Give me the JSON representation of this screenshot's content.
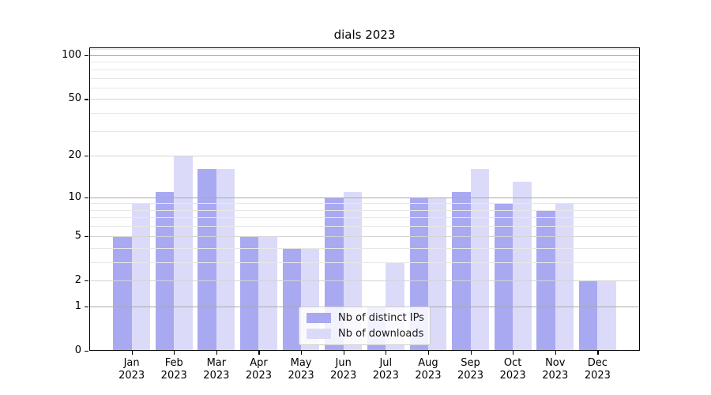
{
  "chart_data": {
    "type": "bar",
    "title": "dials 2023",
    "categories": [
      {
        "month": "Jan",
        "year": "2023"
      },
      {
        "month": "Feb",
        "year": "2023"
      },
      {
        "month": "Mar",
        "year": "2023"
      },
      {
        "month": "Apr",
        "year": "2023"
      },
      {
        "month": "May",
        "year": "2023"
      },
      {
        "month": "Jun",
        "year": "2023"
      },
      {
        "month": "Jul",
        "year": "2023"
      },
      {
        "month": "Aug",
        "year": "2023"
      },
      {
        "month": "Sep",
        "year": "2023"
      },
      {
        "month": "Oct",
        "year": "2023"
      },
      {
        "month": "Nov",
        "year": "2023"
      },
      {
        "month": "Dec",
        "year": "2023"
      }
    ],
    "series": [
      {
        "key": "ips",
        "name": "Nb of distinct IPs",
        "color": "#a9a9f2",
        "values": [
          5,
          11,
          16,
          5,
          4,
          10,
          1,
          10,
          11,
          9,
          8,
          2
        ]
      },
      {
        "key": "downloads",
        "name": "Nb of downloads",
        "color": "#dbdbf9",
        "values": [
          9,
          20,
          16,
          5,
          4,
          11,
          3,
          10,
          16,
          13,
          9,
          2
        ]
      }
    ],
    "y_axis": {
      "scale": "log10(1+x)",
      "major_ticks": [
        0,
        1,
        2,
        5,
        10,
        20,
        50,
        100
      ],
      "minor_gridlines": [
        3,
        4,
        6,
        7,
        8,
        9,
        30,
        40,
        60,
        70,
        80,
        90,
        110
      ],
      "ylim": [
        0,
        113
      ]
    },
    "grid": true,
    "legend_position": "lower center"
  },
  "colors": {
    "background": "#ffffff",
    "grid_major": "#a9a9a9",
    "grid_mid": "#d4d4d4",
    "grid_minor": "#e7e7e7",
    "axis": "#000000",
    "text": "#1a1a1a",
    "legend_border": "#cccccc"
  }
}
